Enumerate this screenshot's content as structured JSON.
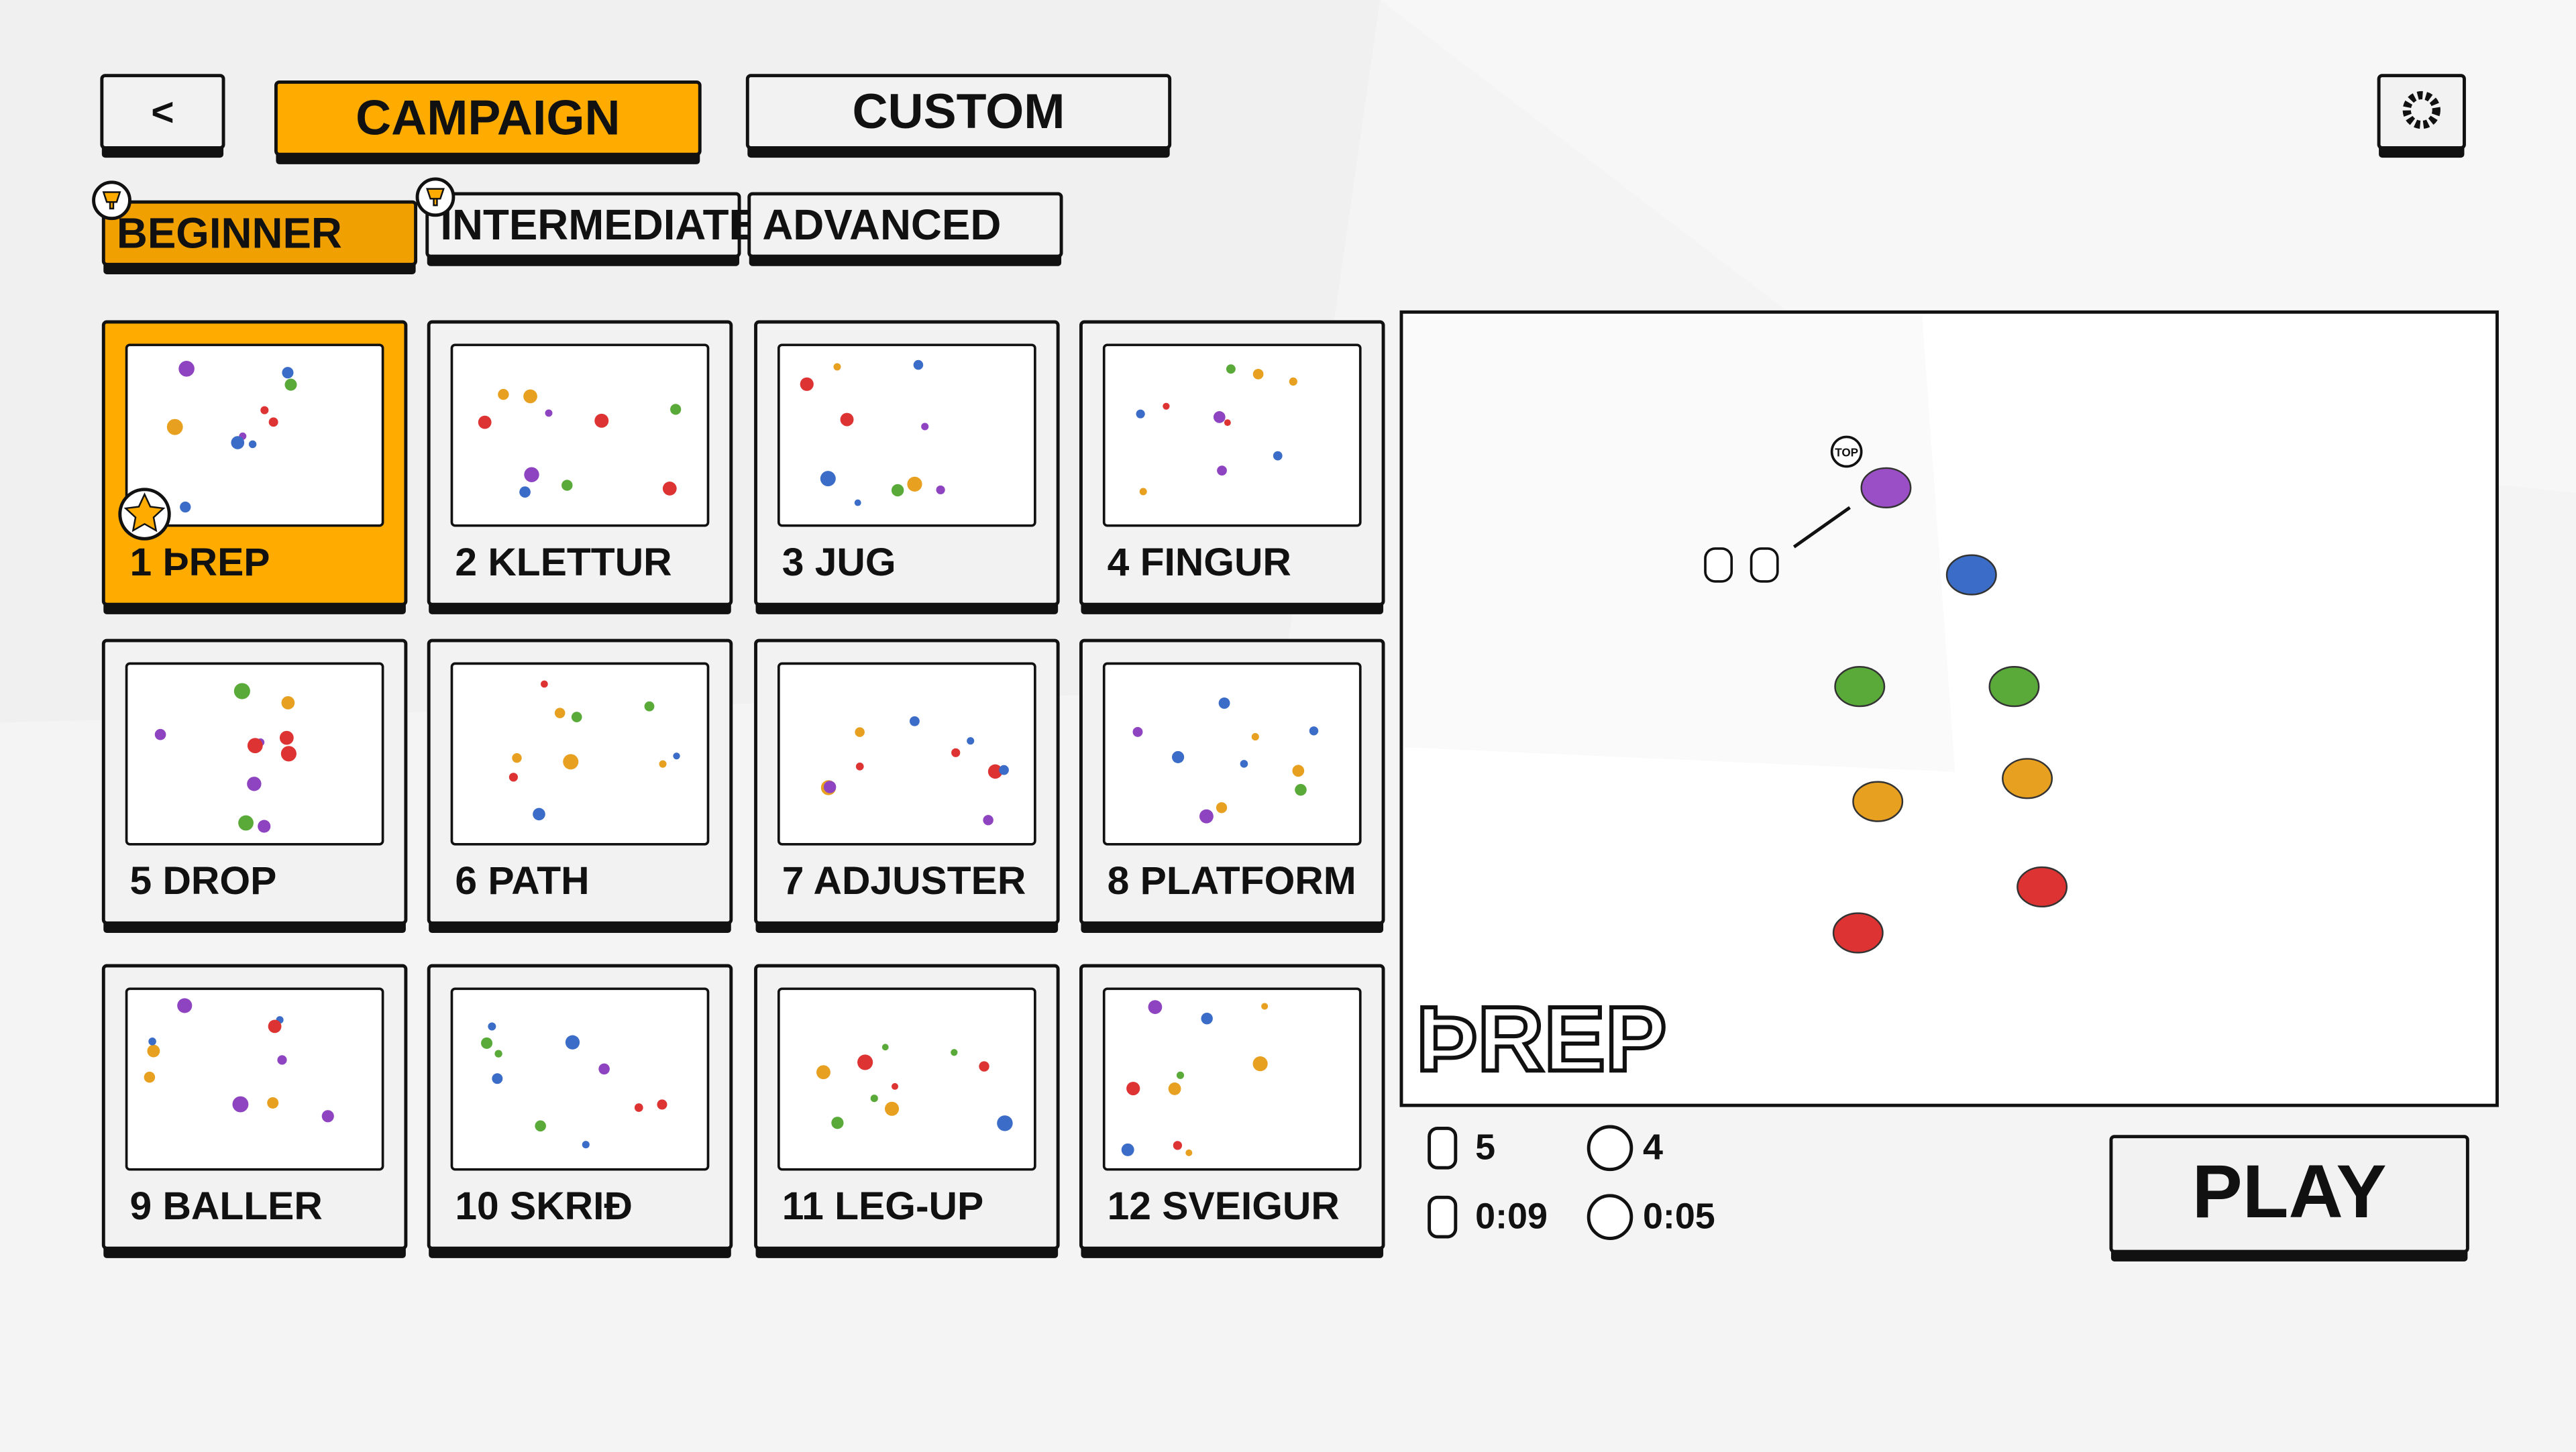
{
  "header": {
    "back": "<",
    "tabs": [
      "CAMPAIGN",
      "CUSTOM"
    ]
  },
  "difficulty_tabs": [
    "BEGINNER",
    "INTERMEDIATE",
    "ADVANCED"
  ],
  "levels": [
    "1 ÞREP",
    "2 KLETTUR",
    "3 JUG",
    "4 FINGUR",
    "5 DROP",
    "6 PATH",
    "7 ADJUSTER",
    "8 PLATFORM",
    "9 BALLER",
    "10 SKRIÐ",
    "11 LEG-UP",
    "12 SVEIGUR"
  ],
  "preview": {
    "title": "ÞREP",
    "top_label": "TOP"
  },
  "stats": {
    "moves": "5",
    "star_moves": "4",
    "time": "0:09",
    "star_time": "0:05"
  },
  "play": "PLAY"
}
